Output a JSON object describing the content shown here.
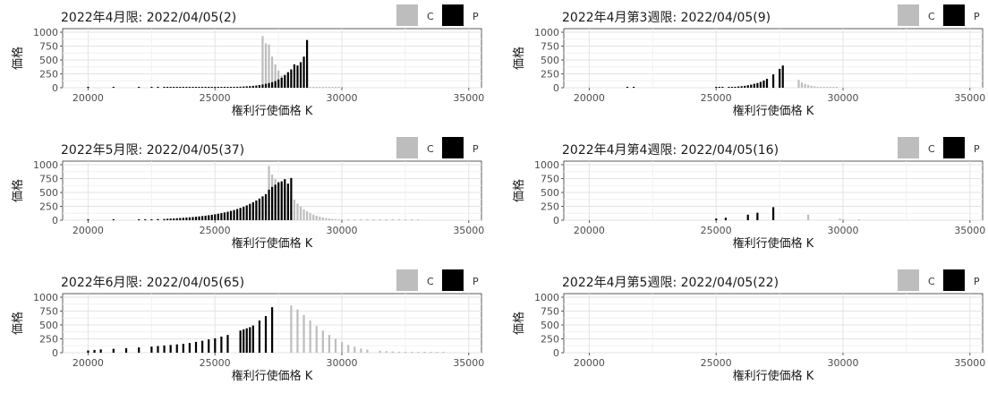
{
  "chart_data": [
    {
      "type": "bar",
      "title": "2022年4月限: 2022/04/05(2)",
      "xlabel": "権利行使価格 K",
      "ylabel": "価格",
      "xlim": [
        19000,
        35500
      ],
      "ylim": [
        0,
        1000
      ],
      "xticks": [
        "20000",
        "25000",
        "30000",
        "35000"
      ],
      "yticks": [
        "0",
        "250",
        "500",
        "750",
        "1000"
      ],
      "legend": {
        "position": "top-right",
        "entries": [
          "C",
          "P"
        ]
      },
      "series": [
        {
          "name": "C",
          "color": "#bdbdbd",
          "x": [
            26875,
            27000,
            27125,
            27250,
            27375,
            27500,
            27625,
            27750,
            27875,
            28000,
            28125,
            28250,
            28375,
            28500,
            28625,
            28750,
            28875,
            29000,
            29125,
            29250,
            29375,
            29500,
            29625,
            29750,
            29875,
            30000
          ],
          "values": [
            930,
            800,
            780,
            560,
            420,
            310,
            220,
            160,
            110,
            75,
            50,
            35,
            22,
            15,
            10,
            7,
            5,
            4,
            3,
            2,
            2,
            1,
            1,
            1,
            1,
            1
          ]
        },
        {
          "name": "P",
          "color": "#000000",
          "x": [
            20000,
            21000,
            22000,
            22500,
            22750,
            23000,
            23125,
            23250,
            23375,
            23500,
            23625,
            23750,
            23875,
            24000,
            24125,
            24250,
            24375,
            24500,
            24625,
            24750,
            24875,
            25000,
            25125,
            25250,
            25375,
            25500,
            25625,
            25750,
            25875,
            26000,
            26125,
            26250,
            26375,
            26500,
            26625,
            26750,
            26875,
            27000,
            27125,
            27250,
            27375,
            27500,
            27625,
            27750,
            27875,
            28000,
            28125,
            28250,
            28375,
            28500,
            28625
          ],
          "values": [
            1,
            1,
            2,
            2,
            2,
            3,
            3,
            3,
            3,
            3,
            3,
            4,
            4,
            4,
            5,
            5,
            5,
            6,
            6,
            7,
            7,
            8,
            9,
            10,
            11,
            12,
            13,
            15,
            17,
            19,
            22,
            25,
            29,
            34,
            40,
            48,
            58,
            70,
            85,
            100,
            120,
            150,
            180,
            230,
            280,
            330,
            420,
            400,
            460,
            560,
            860
          ]
        }
      ]
    },
    {
      "type": "bar",
      "title": "2022年4月第3週限: 2022/04/05(9)",
      "xlabel": "権利行使価格 K",
      "ylabel": "価格",
      "xlim": [
        19000,
        35500
      ],
      "ylim": [
        0,
        1000
      ],
      "xticks": [
        "20000",
        "25000",
        "30000",
        "35000"
      ],
      "yticks": [
        "0",
        "250",
        "500",
        "750",
        "1000"
      ],
      "legend": {
        "position": "top-right",
        "entries": [
          "C",
          "P"
        ]
      },
      "series": [
        {
          "name": "C",
          "color": "#bdbdbd",
          "x": [
            28250,
            28375,
            28500,
            28625,
            28750,
            28875,
            29000,
            29125,
            29250,
            29375,
            29500,
            29625,
            29750
          ],
          "values": [
            140,
            95,
            70,
            50,
            35,
            25,
            18,
            12,
            8,
            6,
            4,
            3,
            2
          ]
        },
        {
          "name": "P",
          "color": "#000000",
          "x": [
            21500,
            21750,
            25000,
            25125,
            25250,
            25500,
            25625,
            25750,
            25875,
            26000,
            26125,
            26250,
            26375,
            26500,
            26625,
            26750,
            26875,
            27000,
            27250,
            27500,
            27625
          ],
          "values": [
            2,
            2,
            4,
            6,
            8,
            10,
            13,
            17,
            22,
            28,
            35,
            45,
            55,
            70,
            85,
            105,
            130,
            160,
            240,
            340,
            400
          ]
        }
      ]
    },
    {
      "type": "bar",
      "title": "2022年5月限: 2022/04/05(37)",
      "xlabel": "権利行使価格 K",
      "ylabel": "価格",
      "xlim": [
        19000,
        35500
      ],
      "ylim": [
        0,
        1000
      ],
      "xticks": [
        "20000",
        "25000",
        "30000",
        "35000"
      ],
      "yticks": [
        "0",
        "250",
        "500",
        "750",
        "1000"
      ],
      "legend": {
        "position": "top-right",
        "entries": [
          "C",
          "P"
        ]
      },
      "series": [
        {
          "name": "C",
          "color": "#bdbdbd",
          "x": [
            27125,
            27250,
            27375,
            27500,
            27625,
            27750,
            27875,
            28000,
            28125,
            28250,
            28375,
            28500,
            28625,
            28750,
            28875,
            29000,
            29125,
            29250,
            29375,
            29500,
            29625,
            29750,
            29875,
            30000,
            30250,
            30500,
            30750,
            31000,
            31250,
            31500,
            31750,
            32000,
            32250,
            32500,
            32750,
            33000
          ],
          "values": [
            980,
            820,
            740,
            700,
            650,
            580,
            520,
            440,
            370,
            300,
            245,
            195,
            160,
            130,
            100,
            80,
            65,
            52,
            40,
            32,
            25,
            20,
            16,
            12,
            9,
            7,
            5,
            4,
            3,
            2,
            2,
            2,
            1,
            1,
            1,
            1
          ]
        },
        {
          "name": "P",
          "color": "#000000",
          "x": [
            20000,
            21000,
            22000,
            22250,
            22500,
            22750,
            23000,
            23125,
            23250,
            23375,
            23500,
            23625,
            23750,
            23875,
            24000,
            24125,
            24250,
            24375,
            24500,
            24625,
            24750,
            24875,
            25000,
            25125,
            25250,
            25375,
            25500,
            25625,
            25750,
            25875,
            26000,
            26125,
            26250,
            26375,
            26500,
            26625,
            26750,
            26875,
            27000,
            27125,
            27250,
            27375,
            27500,
            27625,
            27750,
            27875,
            28000
          ],
          "values": [
            5,
            8,
            12,
            14,
            17,
            20,
            23,
            26,
            29,
            32,
            36,
            40,
            44,
            48,
            53,
            58,
            63,
            69,
            75,
            82,
            90,
            98,
            107,
            117,
            128,
            140,
            153,
            168,
            184,
            202,
            222,
            244,
            268,
            295,
            325,
            355,
            390,
            430,
            470,
            550,
            600,
            640,
            680,
            700,
            740,
            660,
            760
          ]
        }
      ]
    },
    {
      "type": "bar",
      "title": "2022年4月第4週限: 2022/04/05(16)",
      "xlabel": "権利行使価格 K",
      "ylabel": "価格",
      "xlim": [
        19000,
        35500
      ],
      "ylim": [
        0,
        1000
      ],
      "xticks": [
        "20000",
        "25000",
        "30000",
        "35000"
      ],
      "yticks": [
        "0",
        "250",
        "500",
        "750",
        "1000"
      ],
      "legend": {
        "position": "top-right",
        "entries": [
          "C",
          "P"
        ]
      },
      "series": [
        {
          "name": "C",
          "color": "#bdbdbd",
          "x": [
            28625,
            29875,
            30000,
            30625
          ],
          "values": [
            100,
            30,
            20,
            5
          ]
        },
        {
          "name": "P",
          "color": "#000000",
          "x": [
            25000,
            25375,
            26250,
            26625,
            27250
          ],
          "values": [
            30,
            45,
            100,
            135,
            235
          ]
        }
      ]
    },
    {
      "type": "bar",
      "title": "2022年6月限: 2022/04/05(65)",
      "xlabel": "権利行使価格 K",
      "ylabel": "価格",
      "xlim": [
        19000,
        35500
      ],
      "ylim": [
        0,
        1000
      ],
      "xticks": [
        "20000",
        "25000",
        "30000",
        "35000"
      ],
      "yticks": [
        "0",
        "250",
        "500",
        "750",
        "1000"
      ],
      "legend": {
        "position": "top-right",
        "entries": [
          "C",
          "P"
        ]
      },
      "series": [
        {
          "name": "C",
          "color": "#bdbdbd",
          "x": [
            28000,
            28250,
            28500,
            28750,
            29000,
            29250,
            29500,
            29750,
            30000,
            30250,
            30500,
            30750,
            31000,
            31500,
            31750,
            32000,
            32250,
            32500,
            32750,
            33000,
            33250,
            33500,
            33750,
            34000
          ],
          "values": [
            850,
            780,
            680,
            580,
            480,
            400,
            320,
            250,
            190,
            140,
            105,
            75,
            55,
            35,
            28,
            22,
            18,
            14,
            11,
            9,
            7,
            6,
            5,
            4
          ]
        },
        {
          "name": "P",
          "color": "#000000",
          "x": [
            20000,
            20250,
            20500,
            21000,
            21500,
            22000,
            22500,
            22750,
            23000,
            23250,
            23500,
            23750,
            24000,
            24250,
            24500,
            24750,
            25000,
            25250,
            25500,
            26000,
            26125,
            26250,
            26375,
            26500,
            26750,
            27000,
            27250
          ],
          "values": [
            40,
            50,
            60,
            70,
            80,
            95,
            110,
            120,
            130,
            140,
            150,
            160,
            175,
            195,
            215,
            240,
            260,
            290,
            320,
            400,
            420,
            440,
            460,
            490,
            580,
            660,
            820
          ]
        }
      ]
    },
    {
      "type": "bar",
      "title": "2022年4月第5週限: 2022/04/05(22)",
      "xlabel": "権利行使価格 K",
      "ylabel": "価格",
      "xlim": [
        19000,
        35500
      ],
      "ylim": [
        0,
        1000
      ],
      "xticks": [
        "20000",
        "25000",
        "30000",
        "35000"
      ],
      "yticks": [
        "0",
        "250",
        "500",
        "750",
        "1000"
      ],
      "legend": {
        "position": "top-right",
        "entries": [
          "C",
          "P"
        ]
      },
      "series": [
        {
          "name": "C",
          "color": "#bdbdbd",
          "x": [],
          "values": []
        },
        {
          "name": "P",
          "color": "#000000",
          "x": [],
          "values": []
        }
      ]
    }
  ]
}
